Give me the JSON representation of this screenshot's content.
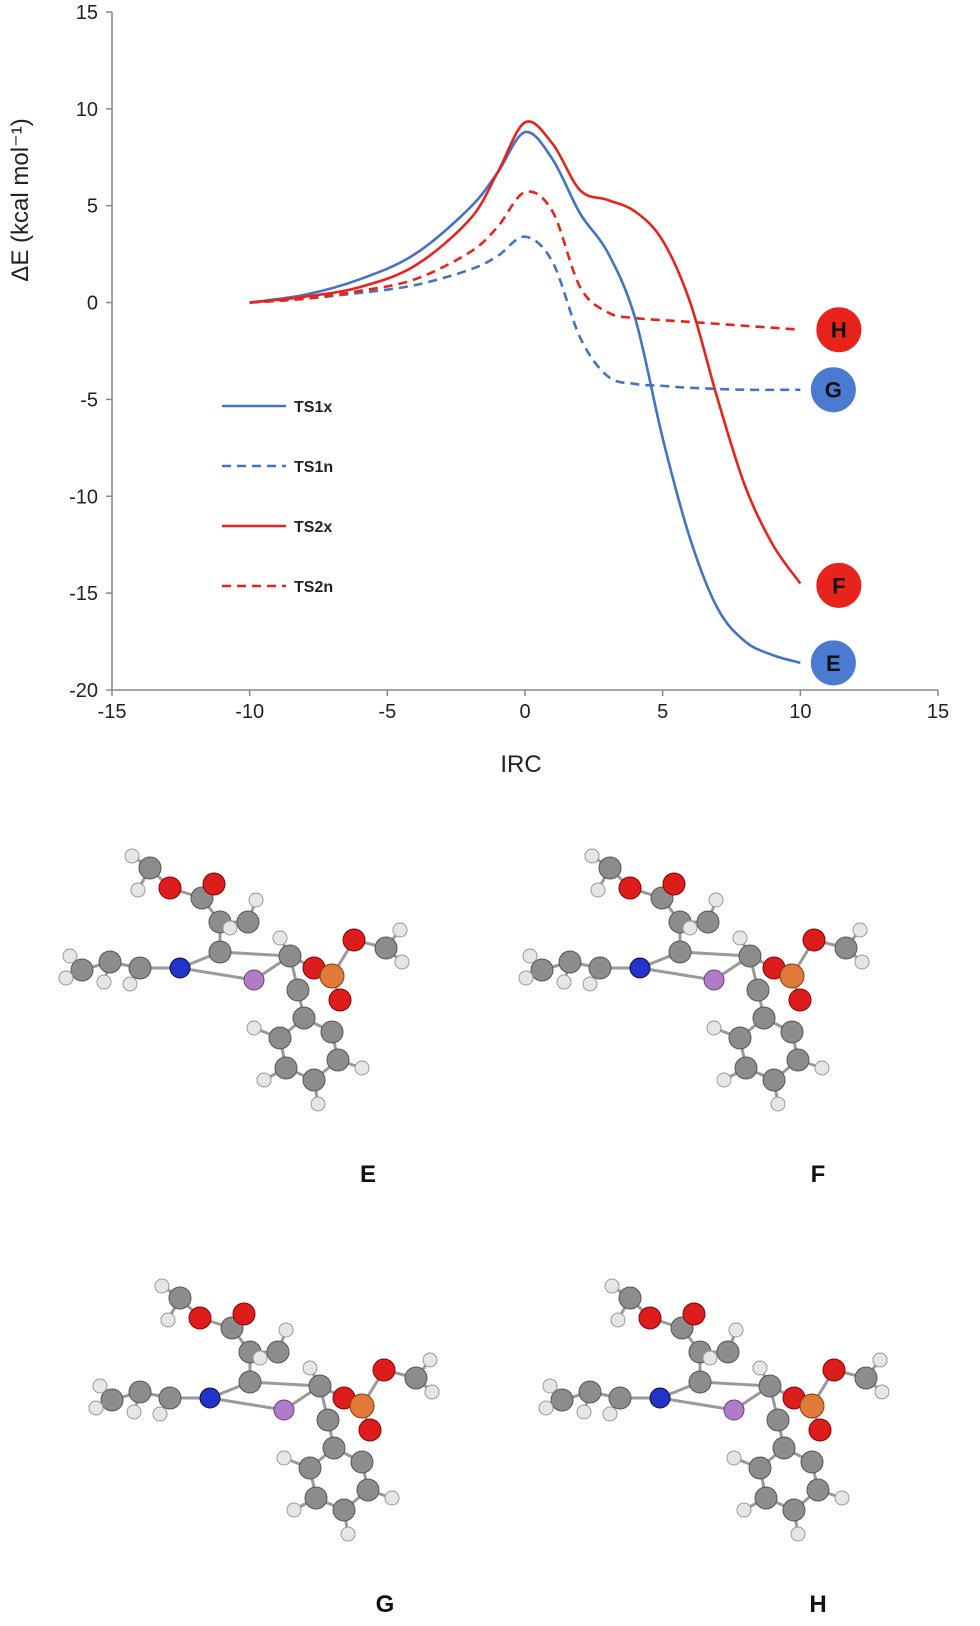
{
  "chart_data": {
    "type": "line",
    "ylabel": "ΔE (kcal mol⁻¹)",
    "xlabel": "IRC",
    "xlim": [
      -15,
      15
    ],
    "ylim": [
      -20,
      15
    ],
    "x_ticks": [
      "-15",
      "-10",
      "-5",
      "0",
      "5",
      "10",
      "15"
    ],
    "y_ticks": [
      "15",
      "10",
      "5",
      "0",
      "-5",
      "-10",
      "-15",
      "-20"
    ],
    "grid": false,
    "legend_position": "left",
    "series": [
      {
        "name": "TS1x",
        "color": "#4472C4",
        "style": "solid",
        "x": [
          -10,
          -8,
          -6,
          -4,
          -2,
          -1,
          0,
          1,
          2,
          3,
          4,
          5,
          6,
          7,
          8,
          9,
          10
        ],
        "y": [
          0,
          0.4,
          1.2,
          2.5,
          4.9,
          6.7,
          8.8,
          7.4,
          4.6,
          2.6,
          -0.8,
          -7.0,
          -12.2,
          -15.8,
          -17.5,
          -18.2,
          -18.6
        ]
      },
      {
        "name": "TS1n",
        "color": "#4472C4",
        "style": "dashed",
        "x": [
          -10,
          -8,
          -6,
          -4,
          -2,
          -1,
          0,
          1,
          2,
          3,
          4,
          5,
          6,
          8,
          10
        ],
        "y": [
          0,
          0.2,
          0.5,
          0.9,
          1.7,
          2.4,
          3.4,
          2.1,
          -1.8,
          -3.8,
          -4.2,
          -4.3,
          -4.4,
          -4.5,
          -4.5
        ]
      },
      {
        "name": "TS2x",
        "color": "#E8231C",
        "style": "solid",
        "x": [
          -10,
          -8,
          -6,
          -4,
          -2,
          -1,
          0,
          1,
          2,
          3,
          4,
          5,
          6,
          7,
          8,
          9,
          10
        ],
        "y": [
          0,
          0.3,
          0.8,
          1.9,
          4.3,
          6.7,
          9.3,
          8.2,
          5.8,
          5.3,
          4.7,
          3.2,
          0.0,
          -5.0,
          -9.5,
          -12.5,
          -14.5
        ]
      },
      {
        "name": "TS2n",
        "color": "#E8231C",
        "style": "dashed",
        "x": [
          -10,
          -8,
          -6,
          -4,
          -2,
          -1,
          0,
          1,
          2,
          3,
          4,
          6,
          8,
          10
        ],
        "y": [
          0,
          0.2,
          0.6,
          1.2,
          2.6,
          3.9,
          5.7,
          4.7,
          0.8,
          -0.5,
          -0.8,
          -1.0,
          -1.2,
          -1.4
        ]
      }
    ],
    "end_markers": [
      {
        "label": "H",
        "x": 11,
        "y": -1.4,
        "color": "#E8231C"
      },
      {
        "label": "G",
        "x": 10.8,
        "y": -4.5,
        "color": "#4A7BD0"
      },
      {
        "label": "F",
        "x": 11,
        "y": -14.6,
        "color": "#E8231C"
      },
      {
        "label": "E",
        "x": 10.8,
        "y": -18.6,
        "color": "#4A7BD0"
      }
    ]
  },
  "structures": {
    "labels": [
      "E",
      "F",
      "G",
      "H"
    ]
  }
}
